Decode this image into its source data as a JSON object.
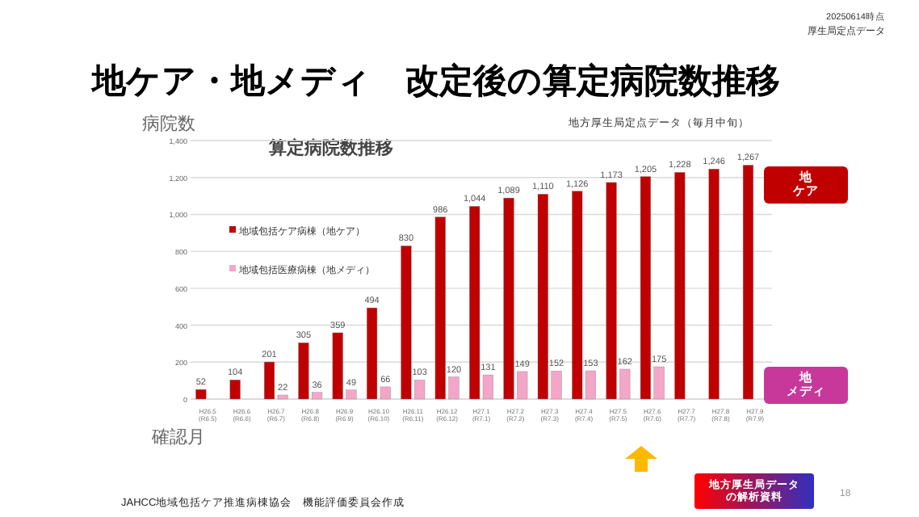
{
  "chart_data": {
    "type": "bar",
    "title": "地ケア・地メディ　改定後の算定病院数推移",
    "subtitle": "算定病院数推移",
    "ylabel": "病院数",
    "xlabel": "確認月",
    "categories": [
      "H26.5\n(R6.5)",
      "H26.6\n(R6.6)",
      "H26.7\n(R6.7)",
      "H26.8\n(R6.8)",
      "H26.9\n(R6.9)",
      "H26.10\n(R6.10)",
      "H26.11\n(R6.11)",
      "H26.12\n(R6.12)",
      "H27.1\n(R7.1)",
      "H27.2\n(R7.2)",
      "H27.3\n(R7.3)",
      "H27.4\n(R7.4)",
      "H27.5\n(R7.5)",
      "H27.6\n(R7.6)",
      "H27.7\n(R7.7)",
      "H27.8\n(R7.8)",
      "H27.9\n(R7.9)"
    ],
    "series": [
      {
        "name": "地域包括ケア病棟（地ケア）",
        "color": "#c00000",
        "values": [
          52,
          104,
          201,
          305,
          359,
          494,
          830,
          986,
          1044,
          1089,
          1110,
          1126,
          1173,
          1205,
          1228,
          1246,
          1267
        ],
        "value_labels": [
          "52",
          "104",
          "201",
          "305",
          "359",
          "494",
          "830",
          "986",
          "1,044",
          "1,089",
          "1,110",
          "1,126",
          "1,173",
          "1,205",
          "1,228",
          "1,246",
          "1,267"
        ]
      },
      {
        "name": "地域包括医療病棟（地メディ）",
        "color": "#f4a6c8",
        "values": [
          null,
          null,
          22,
          36,
          49,
          66,
          103,
          120,
          131,
          149,
          152,
          153,
          162,
          175,
          null,
          null,
          null
        ],
        "value_labels": [
          null,
          null,
          "22",
          "36",
          "49",
          "66",
          "103",
          "120",
          "131",
          "149",
          "152",
          "153",
          "162",
          "175",
          null,
          null,
          null
        ]
      }
    ],
    "ylim": [
      0,
      1400
    ],
    "yticks": [
      {
        "value": 0,
        "label": "0"
      },
      {
        "value": 200,
        "label": "200"
      },
      {
        "value": 400,
        "label": "400"
      },
      {
        "value": 600,
        "label": "600"
      },
      {
        "value": 800,
        "label": "800"
      },
      {
        "value": 1000,
        "label": "1,000"
      },
      {
        "value": 1200,
        "label": "1,200"
      },
      {
        "value": 1400,
        "label": "1,400"
      }
    ],
    "grid": "y",
    "legend": "top left",
    "annotations": [
      "20250614時点",
      "厚生局定点データ",
      "地方厚生局定点データ（毎月中旬）",
      "地ケア",
      "地メディ",
      "JAHCC地域包括ケア推進病棟協会　機能評価委員会作成",
      "地方厚生局データの解析資料",
      "18"
    ]
  }
}
